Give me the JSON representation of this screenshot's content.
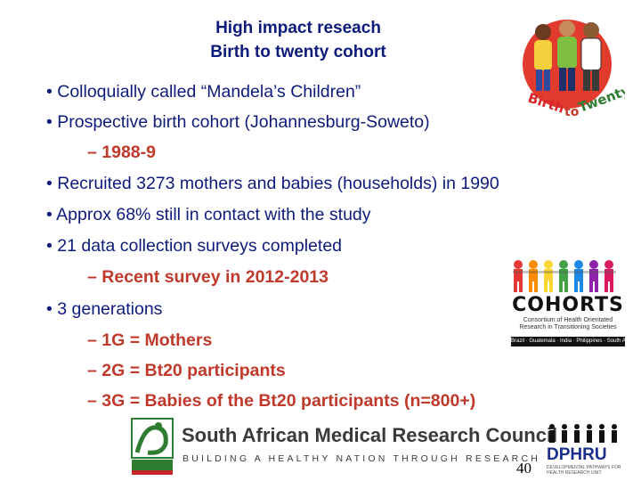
{
  "title": {
    "line1": "High impact reseach",
    "line2": "Birth to twenty cohort"
  },
  "bullets": [
    {
      "text": "• Colloquially called “Mandela’s Children”",
      "level": 0
    },
    {
      "text": "• Prospective birth cohort (Johannesburg-Soweto)",
      "level": 0
    },
    {
      "text": "– 1988-9",
      "level": 1,
      "color": "red"
    },
    {
      "text": "• Recruited 3273 mothers and babies (households) in 1990",
      "level": 0
    },
    {
      "text": "• Approx 68% still in contact with the study",
      "level": 0
    },
    {
      "text": "• 21 data collection surveys completed",
      "level": 0
    },
    {
      "text": "– Recent survey in 2012-2013",
      "level": 1,
      "color": "red"
    },
    {
      "text": "• 3 generations",
      "level": 0
    },
    {
      "text": "– 1G = Mothers",
      "level": 1,
      "color": "red"
    },
    {
      "text": "– 2G = Bt20 participants",
      "level": 1,
      "color": "red"
    },
    {
      "text": "– 3G = Babies of the Bt20 participants (n=800+)",
      "level": 1,
      "color": "red"
    }
  ],
  "logos": {
    "bt20_text": "Birth to Twenty",
    "cohorts_word": "COHORTS",
    "cohorts_sub": "Consortium of Health Orientated Research in Transitioning Societies",
    "cohorts_bar": "Brazil · Guatemala · India · Philippines · South Africa",
    "mrc_name": "South African Medical Research Council",
    "mrc_tagline": "BUILDING A HEALTHY NATION THROUGH RESEARCH",
    "mrc_short": "MRC",
    "dphru_word": "DPHRU",
    "dphru_sub": "DEVELOPMENTAL PATHWAYS FOR HEALTH RESEARCH UNIT"
  },
  "colors": {
    "title": "#0d1b7a",
    "text": "#0d1b7a",
    "accent": "#c0392b"
  },
  "page_number": "40"
}
